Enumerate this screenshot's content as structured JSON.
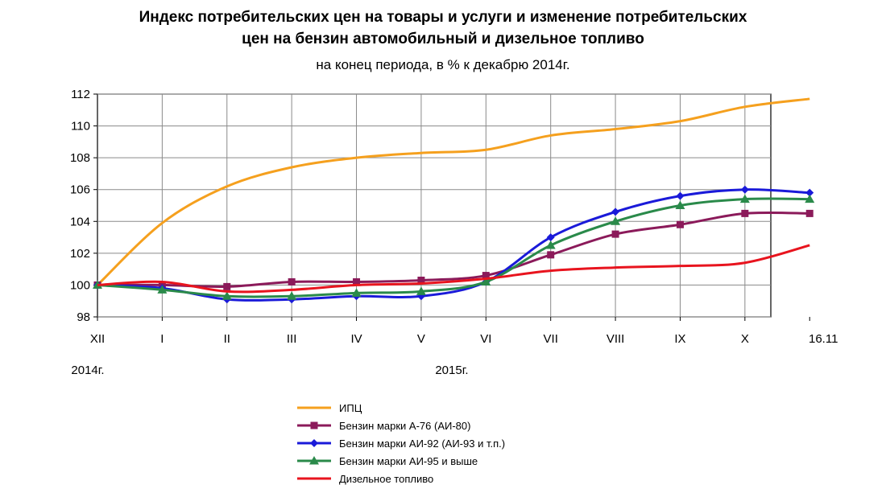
{
  "title_line1": "Индекс потребительских цен на товары и услуги и изменение потребительских",
  "title_line2": "цен на бензин автомобильный и дизельное топливо",
  "subtitle": "на конец периода, в % к декабрю 2014г.",
  "year_labels": [
    "2014г.",
    "2015г."
  ],
  "chart_data": {
    "type": "line",
    "categories": [
      "XII",
      "I",
      "II",
      "III",
      "IV",
      "V",
      "VI",
      "VII",
      "VIII",
      "IX",
      "X",
      "16.11"
    ],
    "ylim": [
      98,
      112
    ],
    "yticks": [
      98,
      100,
      102,
      104,
      106,
      108,
      110,
      112
    ],
    "grid": true,
    "legend_position": "bottom",
    "series": [
      {
        "name": "ИПЦ",
        "color": "#f5a01e",
        "marker": "none",
        "values": [
          100.0,
          103.9,
          106.2,
          107.4,
          108.0,
          108.3,
          108.5,
          109.4,
          109.8,
          110.3,
          111.2,
          111.7
        ]
      },
      {
        "name": "Бензин марки А-76 (АИ-80)",
        "color": "#8b1a5a",
        "marker": "square",
        "values": [
          100.0,
          100.0,
          99.9,
          100.2,
          100.2,
          100.3,
          100.6,
          101.9,
          103.2,
          103.8,
          104.5,
          104.5
        ]
      },
      {
        "name": "Бензин марки АИ-92 (АИ-93 и т.п.)",
        "color": "#1a1ad9",
        "marker": "diamond",
        "values": [
          100.0,
          99.8,
          99.1,
          99.1,
          99.3,
          99.3,
          100.2,
          103.0,
          104.6,
          105.6,
          106.0,
          105.8
        ]
      },
      {
        "name": "Бензин марки АИ-95 и выше",
        "color": "#2a8a4a",
        "marker": "triangle",
        "values": [
          100.0,
          99.7,
          99.3,
          99.3,
          99.5,
          99.6,
          100.2,
          102.5,
          104.0,
          105.0,
          105.4,
          105.4
        ]
      },
      {
        "name": "Дизельное топливо",
        "color": "#e8141e",
        "marker": "none",
        "values": [
          100.0,
          100.2,
          99.6,
          99.7,
          100.0,
          100.1,
          100.4,
          100.9,
          101.1,
          101.2,
          101.4,
          102.5
        ]
      }
    ]
  }
}
